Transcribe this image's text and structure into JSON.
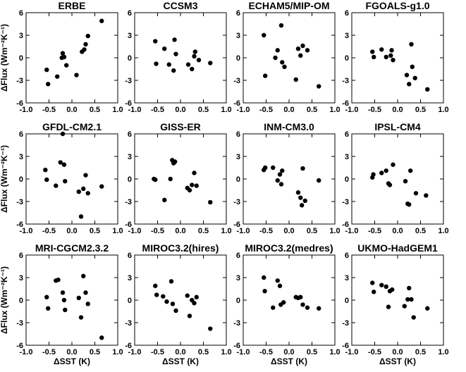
{
  "chart_data": [
    {
      "type": "scatter",
      "title": "ERBE",
      "ylabel": "ΔFlux (Wm⁻²K⁻¹)",
      "xlabel": "",
      "xlim": [
        -1.0,
        1.0
      ],
      "ylim": [
        -6,
        6
      ],
      "xticks": [
        "-1.0",
        "-0.5",
        "0.0",
        "0.5",
        "1.0"
      ],
      "yticks": [
        "-6",
        "-3",
        "0",
        "3",
        "6"
      ],
      "x": [
        -0.55,
        -0.52,
        -0.32,
        -0.22,
        -0.2,
        -0.17,
        -0.12,
        0.1,
        0.22,
        0.27,
        0.3,
        0.35,
        0.65
      ],
      "y": [
        -1.6,
        -3.5,
        -2.5,
        0.0,
        0.6,
        0.1,
        -1.0,
        -2.3,
        0.8,
        1.1,
        1.8,
        2.9,
        4.9
      ]
    },
    {
      "type": "scatter",
      "title": "CCSM3",
      "ylabel": "",
      "xlabel": "",
      "xlim": [
        -1.0,
        1.0
      ],
      "ylim": [
        -6,
        6
      ],
      "xticks": [
        "-1.0",
        "-0.5",
        "0.0",
        "0.5",
        "1.0"
      ],
      "yticks": [
        "-6",
        "-3",
        "0",
        "3",
        "6"
      ],
      "x": [
        -0.55,
        -0.53,
        -0.35,
        -0.25,
        -0.15,
        -0.13,
        -0.1,
        0.17,
        0.25,
        0.3,
        0.32,
        0.4,
        0.65
      ],
      "y": [
        2.2,
        -0.8,
        1.2,
        -0.9,
        -1.7,
        2.4,
        0.5,
        -0.9,
        -1.5,
        0.2,
        0.8,
        -0.3,
        -0.7
      ]
    },
    {
      "type": "scatter",
      "title": "ECHAM5/MIP-OM",
      "ylabel": "",
      "xlabel": "",
      "xlim": [
        -1.0,
        1.0
      ],
      "ylim": [
        -6,
        6
      ],
      "xticks": [
        "-1.0",
        "-0.5",
        "0.0",
        "0.5",
        "1.0"
      ],
      "yticks": [
        "-6",
        "-3",
        "0",
        "3",
        "6"
      ],
      "x": [
        -0.55,
        -0.52,
        -0.3,
        -0.25,
        -0.17,
        -0.15,
        -0.1,
        0.15,
        0.2,
        0.25,
        0.3,
        0.4,
        0.65
      ],
      "y": [
        3.0,
        -2.4,
        0.0,
        1.0,
        4.3,
        -0.6,
        -1.2,
        -2.9,
        1.2,
        0.3,
        1.6,
        1.0,
        -3.8
      ]
    },
    {
      "type": "scatter",
      "title": "FGOALS-g1.0",
      "ylabel": "",
      "xlabel": "",
      "xlim": [
        -1.0,
        1.0
      ],
      "ylim": [
        -6,
        6
      ],
      "xticks": [
        "-1.0",
        "-0.5",
        "0.0",
        "0.5",
        "1.0"
      ],
      "yticks": [
        "-6",
        "-3",
        "0",
        "3",
        "6"
      ],
      "x": [
        -0.55,
        -0.52,
        -0.35,
        -0.25,
        -0.15,
        -0.13,
        -0.1,
        0.2,
        0.25,
        0.3,
        0.32,
        0.38,
        0.65
      ],
      "y": [
        0.8,
        0.1,
        1.1,
        0.1,
        0.3,
        1.0,
        -0.3,
        -2.3,
        -3.5,
        1.8,
        -1.2,
        -2.7,
        -4.2
      ]
    },
    {
      "type": "scatter",
      "title": "GFDL-CM2.1",
      "ylabel": "ΔFlux (Wm⁻²K⁻¹)",
      "xlabel": "",
      "xlim": [
        -1.0,
        1.0
      ],
      "ylim": [
        -6,
        6
      ],
      "xticks": [
        "-1.0",
        "-0.5",
        "0.0",
        "0.5",
        "1.0"
      ],
      "yticks": [
        "-6",
        "-3",
        "0",
        "3",
        "6"
      ],
      "x": [
        -0.58,
        -0.55,
        -0.35,
        -0.25,
        -0.2,
        -0.17,
        -0.15,
        0.15,
        0.2,
        0.25,
        0.3,
        0.35,
        0.65
      ],
      "y": [
        1.2,
        -0.1,
        -0.9,
        2.2,
        6.0,
        1.9,
        -0.3,
        -1.7,
        -5.0,
        -1.3,
        0.5,
        -1.9,
        -1.0
      ]
    },
    {
      "type": "scatter",
      "title": "GISS-ER",
      "ylabel": "",
      "xlabel": "",
      "xlim": [
        -1.0,
        1.0
      ],
      "ylim": [
        -6,
        6
      ],
      "xticks": [
        "-1.0",
        "-0.5",
        "0.0",
        "0.5",
        "1.0"
      ],
      "yticks": [
        "-6",
        "-3",
        "0",
        "3",
        "6"
      ],
      "x": [
        -0.58,
        -0.55,
        -0.35,
        -0.22,
        -0.18,
        -0.15,
        -0.12,
        0.15,
        0.2,
        0.25,
        0.3,
        0.35,
        0.65
      ],
      "y": [
        0.0,
        -0.1,
        -2.8,
        0.0,
        2.5,
        2.1,
        2.3,
        -1.2,
        -1.5,
        -0.8,
        0.8,
        -0.9,
        -3.1
      ]
    },
    {
      "type": "scatter",
      "title": "INM-CM3.0",
      "ylabel": "",
      "xlabel": "",
      "xlim": [
        -1.0,
        1.0
      ],
      "ylim": [
        -6,
        6
      ],
      "xticks": [
        "-1.0",
        "-0.5",
        "0.0",
        "0.5",
        "1.0"
      ],
      "yticks": [
        "-6",
        "-3",
        "0",
        "3",
        "6"
      ],
      "x": [
        -0.55,
        -0.52,
        -0.35,
        -0.25,
        -0.2,
        -0.17,
        -0.15,
        0.2,
        0.25,
        0.28,
        0.3,
        0.35,
        0.65
      ],
      "y": [
        1.2,
        1.5,
        1.5,
        -0.2,
        0.6,
        -0.7,
        1.1,
        -1.8,
        -2.5,
        -3.5,
        1.4,
        -2.9,
        -0.2
      ]
    },
    {
      "type": "scatter",
      "title": "IPSL-CM4",
      "ylabel": "",
      "xlabel": "",
      "xlim": [
        -1.0,
        1.0
      ],
      "ylim": [
        -6,
        6
      ],
      "xticks": [
        "-1.0",
        "-0.5",
        "0.0",
        "0.5",
        "1.0"
      ],
      "yticks": [
        "-6",
        "-3",
        "0",
        "3",
        "6"
      ],
      "x": [
        -0.55,
        -0.53,
        -0.35,
        -0.25,
        -0.2,
        -0.17,
        -0.1,
        0.17,
        0.22,
        0.25,
        0.28,
        0.4,
        0.62
      ],
      "y": [
        0.2,
        0.6,
        0.8,
        1.1,
        -0.6,
        -0.8,
        1.9,
        -0.3,
        -3.3,
        -3.4,
        1.1,
        -1.9,
        -2.2
      ]
    },
    {
      "type": "scatter",
      "title": "MRI-CGCM2.3.2",
      "ylabel": "ΔFlux (Wm⁻²K⁻¹)",
      "xlabel": "ΔSST (K)",
      "xlim": [
        -1.0,
        1.0
      ],
      "ylim": [
        -6,
        6
      ],
      "xticks": [
        "-1.0",
        "-0.5",
        "0.0",
        "0.5",
        "1.0"
      ],
      "yticks": [
        "-6",
        "-3",
        "0",
        "3",
        "6"
      ],
      "x": [
        -0.55,
        -0.52,
        -0.35,
        -0.3,
        -0.2,
        -0.17,
        -0.15,
        0.15,
        0.2,
        0.25,
        0.3,
        0.35,
        0.65
      ],
      "y": [
        0.4,
        -1.1,
        2.6,
        2.7,
        1.0,
        0.0,
        -1.3,
        0.3,
        -2.3,
        3.2,
        1.0,
        -0.5,
        -5.0
      ]
    },
    {
      "type": "scatter",
      "title": "MIROC3.2(hires)",
      "ylabel": "",
      "xlabel": "ΔSST (K)",
      "xlim": [
        -1.0,
        1.0
      ],
      "ylim": [
        -6,
        6
      ],
      "xticks": [
        "-1.0",
        "-0.5",
        "0.0",
        "0.5",
        "1.0"
      ],
      "yticks": [
        "-6",
        "-3",
        "0",
        "3",
        "6"
      ],
      "x": [
        -0.55,
        -0.52,
        -0.38,
        -0.3,
        -0.2,
        -0.17,
        -0.1,
        0.15,
        0.2,
        0.25,
        0.3,
        0.35,
        0.65
      ],
      "y": [
        1.9,
        0.7,
        0.5,
        -0.2,
        2.5,
        -0.5,
        -1.4,
        0.6,
        -2.1,
        0.0,
        -0.4,
        0.4,
        -3.8
      ]
    },
    {
      "type": "scatter",
      "title": "MIROC3.2(medres)",
      "ylabel": "",
      "xlabel": "ΔSST (K)",
      "xlim": [
        -1.0,
        1.0
      ],
      "ylim": [
        -6,
        6
      ],
      "xticks": [
        "-1.0",
        "-0.5",
        "0.0",
        "0.5",
        "1.0"
      ],
      "yticks": [
        "-6",
        "-3",
        "0",
        "3",
        "6"
      ],
      "x": [
        -0.55,
        -0.53,
        -0.35,
        -0.25,
        -0.2,
        -0.18,
        -0.12,
        0.15,
        0.2,
        0.25,
        0.3,
        0.4,
        0.65
      ],
      "y": [
        3.0,
        1.2,
        -1.0,
        2.6,
        1.9,
        -0.6,
        -0.3,
        0.4,
        0.3,
        0.4,
        -0.6,
        -1.0,
        -1.1
      ]
    },
    {
      "type": "scatter",
      "title": "UKMO-HadGEM1",
      "ylabel": "",
      "xlabel": "ΔSST (K)",
      "xlim": [
        -1.0,
        1.0
      ],
      "ylim": [
        -6,
        6
      ],
      "xticks": [
        "-1.0",
        "-0.5",
        "0.0",
        "0.5",
        "1.0"
      ],
      "yticks": [
        "-6",
        "-3",
        "0",
        "3",
        "6"
      ],
      "x": [
        -0.55,
        -0.52,
        -0.35,
        -0.25,
        -0.2,
        -0.17,
        -0.12,
        0.15,
        0.22,
        0.25,
        0.3,
        0.35,
        0.65
      ],
      "y": [
        2.3,
        1.1,
        2.0,
        1.8,
        -0.9,
        1.2,
        1.4,
        -0.8,
        0.1,
        1.6,
        0.1,
        -2.3,
        -1.1
      ]
    }
  ]
}
